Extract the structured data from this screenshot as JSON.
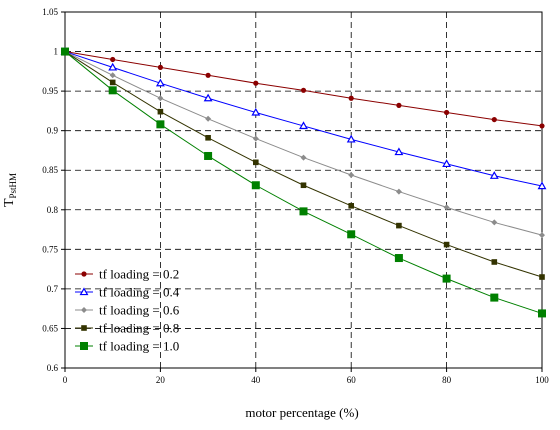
{
  "chart_data": {
    "type": "line",
    "xlabel": "motor percentage (%)",
    "ylabel_main": "T",
    "ylabel_sub": "PstHM",
    "xlim": [
      0,
      100
    ],
    "ylim": [
      0.6,
      1.05
    ],
    "xticks": [
      0,
      20,
      40,
      60,
      80,
      100
    ],
    "yticks": [
      0.6,
      0.65,
      0.7,
      0.75,
      0.8,
      0.85,
      0.9,
      0.95,
      1,
      1.05
    ],
    "ytick_labels": [
      "0.6",
      "0.65",
      "0.7",
      "0.75",
      "0.8",
      "0.85",
      "0.9",
      "0.95",
      "1",
      "1.05"
    ],
    "grid": "dashed",
    "legend_position": "bottom-left",
    "x": [
      0,
      10,
      20,
      30,
      40,
      50,
      60,
      70,
      80,
      90,
      100
    ],
    "series": [
      {
        "name": "tf loading = 0.2",
        "color": "#8b0000",
        "marker": "circle",
        "values": [
          1,
          0.99,
          0.98,
          0.97,
          0.96,
          0.951,
          0.941,
          0.932,
          0.923,
          0.914,
          0.906
        ]
      },
      {
        "name": "tf loading = 0.4",
        "color": "#0000ff",
        "marker": "triangle",
        "values": [
          1,
          0.98,
          0.96,
          0.941,
          0.923,
          0.906,
          0.889,
          0.873,
          0.858,
          0.843,
          0.83
        ]
      },
      {
        "name": "tf loading = 0.6",
        "color": "#8c8c8c",
        "marker": "diamond",
        "values": [
          1,
          0.97,
          0.941,
          0.915,
          0.89,
          0.866,
          0.844,
          0.823,
          0.803,
          0.784,
          0.768
        ]
      },
      {
        "name": "tf loading = 0.8",
        "color": "#333300",
        "marker": "square",
        "values": [
          1,
          0.961,
          0.924,
          0.891,
          0.86,
          0.831,
          0.805,
          0.78,
          0.756,
          0.734,
          0.715
        ]
      },
      {
        "name": "tf loading = 1.0",
        "color": "#008000",
        "marker": "square-large",
        "values": [
          1,
          0.951,
          0.908,
          0.868,
          0.831,
          0.798,
          0.769,
          0.739,
          0.713,
          0.689,
          0.669
        ]
      }
    ]
  }
}
